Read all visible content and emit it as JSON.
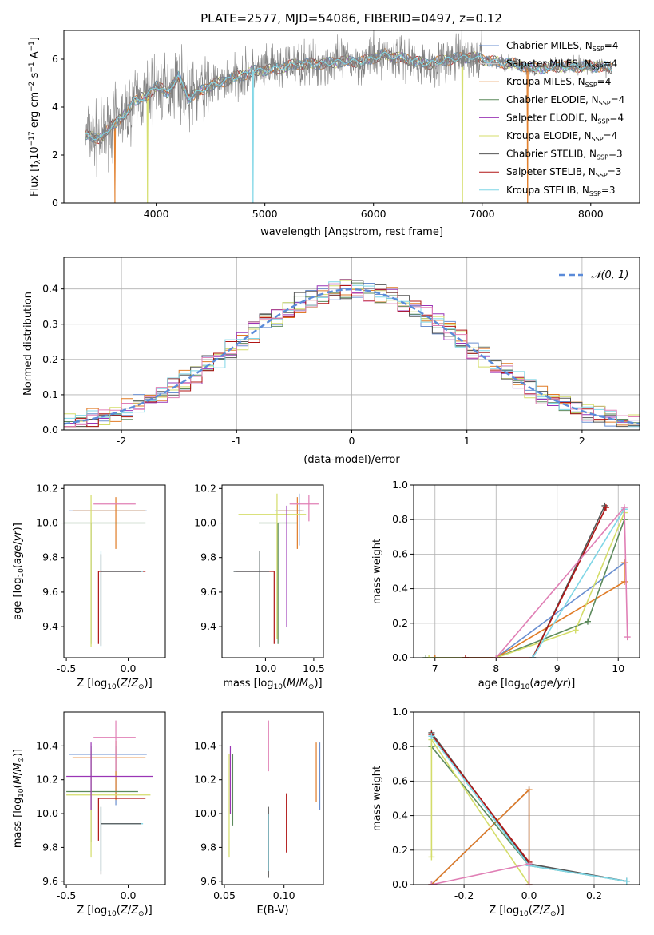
{
  "figure_title": "PLATE=2577, MJD=54086, FIBERID=0497, z=0.12",
  "colors": {
    "Chabrier MILES": "#6a8fd0",
    "Salpeter MILES": "#cccccc",
    "Kroupa MILES": "#e07b25",
    "Chabrier ELODIE": "#5c8a5c",
    "Salpeter ELODIE": "#9a35b5",
    "Kroupa ELODIE": "#d4dd6a",
    "Chabrier STELIB": "#555555",
    "Salpeter STELIB": "#b01515",
    "Kroupa STELIB": "#7fd6e6",
    "normal_fit": "#5b8bd9",
    "pink": "#e07fb5"
  },
  "chart_data": [
    {
      "type": "line",
      "panel": "spectrum",
      "title": "PLATE=2577, MJD=54086, FIBERID=0497, z=0.12",
      "xlabel": "wavelength [Angstrom, rest frame]",
      "ylabel": "Flux [f_λ10^-17 erg cm^-2 s^-1 A^-1]",
      "xlim": [
        3150,
        8450
      ],
      "ylim": [
        0,
        7.2
      ],
      "xticks": [
        4000,
        5000,
        6000,
        7000,
        8000
      ],
      "yticks": [
        0,
        2,
        4,
        6
      ],
      "legend_position": "top-right",
      "legend": [
        {
          "name": "Chabrier MILES",
          "nssp": "4"
        },
        {
          "name": "Salpeter MILES",
          "nssp": "4"
        },
        {
          "name": "Kroupa MILES",
          "nssp": "4"
        },
        {
          "name": "Chabrier ELODIE",
          "nssp": "4"
        },
        {
          "name": "Salpeter ELODIE",
          "nssp": "4"
        },
        {
          "name": "Kroupa ELODIE",
          "nssp": "4"
        },
        {
          "name": "Chabrier STELIB",
          "nssp": "3"
        },
        {
          "name": "Salpeter STELIB",
          "nssp": "3"
        },
        {
          "name": "Kroupa STELIB",
          "nssp": "3"
        }
      ],
      "continuum": {
        "x": [
          3350,
          3500,
          3600,
          3700,
          3800,
          3900,
          4000,
          4100,
          4200,
          4300,
          4500,
          4700,
          4900,
          5100,
          5300,
          5500,
          5700,
          5900,
          6100,
          6300,
          6500,
          6700,
          6900,
          7100,
          7300,
          7500,
          7700,
          7900,
          8100,
          8200
        ],
        "y": [
          2.8,
          2.7,
          3.3,
          3.6,
          4.3,
          4.4,
          4.9,
          4.6,
          5.3,
          4.4,
          4.9,
          5.2,
          5.5,
          5.6,
          5.8,
          5.8,
          5.9,
          5.9,
          6.2,
          6.0,
          5.8,
          6.0,
          6.1,
          5.9,
          5.8,
          5.6,
          5.7,
          5.7,
          5.7,
          5.6
        ]
      },
      "data_noise_sigma": 0.5,
      "sky_dips": [
        {
          "x": 3620,
          "series": "Kroupa MILES"
        },
        {
          "x": 3920,
          "series": "Kroupa ELODIE"
        },
        {
          "x": 4890,
          "series": "Kroupa STELIB"
        },
        {
          "x": 6820,
          "series": "Kroupa ELODIE"
        },
        {
          "x": 7420,
          "series": "Kroupa MILES"
        }
      ]
    },
    {
      "type": "bar",
      "panel": "residual_histogram",
      "xlabel": "(data-model)/error",
      "ylabel": "Normed distribution",
      "xlim": [
        -2.5,
        2.5
      ],
      "ylim": [
        0,
        0.49
      ],
      "xticks": [
        -2,
        -1,
        0,
        1,
        2
      ],
      "yticks": [
        0.0,
        0.1,
        0.2,
        0.3,
        0.4
      ],
      "grid": true,
      "legend_position": "top-right",
      "fit_label": "𝒩(0, 1)",
      "bin_edges": [
        -2.5,
        -2.4,
        -2.3,
        -2.2,
        -2.1,
        -2.0,
        -1.9,
        -1.8,
        -1.7,
        -1.6,
        -1.5,
        -1.4,
        -1.3,
        -1.2,
        -1.1,
        -1.0,
        -0.9,
        -0.8,
        -0.7,
        -0.6,
        -0.5,
        -0.4,
        -0.3,
        -0.2,
        -0.1,
        0.0,
        0.1,
        0.2,
        0.3,
        0.4,
        0.5,
        0.6,
        0.7,
        0.8,
        0.9,
        1.0,
        1.1,
        1.2,
        1.3,
        1.4,
        1.5,
        1.6,
        1.7,
        1.8,
        1.9,
        2.0,
        2.1,
        2.2,
        2.3,
        2.4,
        2.5
      ],
      "approx_density": "standard normal with per-bin scatter of about ±0.03"
    },
    {
      "type": "scatter",
      "panel": "age_vs_Z",
      "xlabel": "Z [log10(Z/Z⊙)]",
      "ylabel": "age [log10(age/yr)]",
      "xlim": [
        -0.52,
        0.3
      ],
      "ylim": [
        9.22,
        10.22
      ],
      "xticks": [
        -0.5,
        0.0
      ],
      "yticks": [
        9.4,
        9.6,
        9.8,
        10.0,
        10.2
      ],
      "series": [
        {
          "name": "Chabrier MILES",
          "x": -0.1,
          "y": 10.07,
          "x_err": [
            0.38,
            0.25
          ],
          "y_err": [
            0,
            0
          ]
        },
        {
          "name": "Kroupa MILES",
          "x": -0.1,
          "y": 10.07,
          "x_err": [
            0.35,
            0.24
          ],
          "y_err": [
            0.22,
            0.08
          ]
        },
        {
          "name": "Chabrier ELODIE",
          "x": -0.3,
          "y": 10.0,
          "x_err": [
            0.22,
            0.44
          ],
          "y_err": [
            0.7,
            0
          ]
        },
        {
          "name": "Kroupa ELODIE",
          "x": -0.3,
          "y": 10.0,
          "x_err": [
            0,
            0
          ],
          "y_err": [
            0.72,
            0.16
          ]
        },
        {
          "name": "Salpeter STELIB",
          "x": -0.24,
          "y": 9.72,
          "x_err": [
            0,
            0.38
          ],
          "y_err": [
            0.42,
            0
          ]
        },
        {
          "name": "Kroupa STELIB",
          "x": -0.22,
          "y": 9.72,
          "x_err": [
            0,
            0.34
          ],
          "y_err": [
            0.44,
            0.12
          ]
        },
        {
          "name": "Chabrier STELIB",
          "x": -0.22,
          "y": 9.72,
          "x_err": [
            0,
            0.32
          ],
          "y_err": [
            0.43,
            0.1
          ]
        },
        {
          "name": "Pink",
          "x": -0.1,
          "y": 10.11,
          "x_err": [
            0.18,
            0.16
          ],
          "y_err": [
            0,
            0
          ]
        },
        {
          "name": "Salpeter ELODIE",
          "x": -0.3,
          "y": 10.08,
          "x_err": [
            0,
            0
          ],
          "y_err": [
            0,
            0
          ]
        }
      ]
    },
    {
      "type": "scatter",
      "panel": "age_vs_mass",
      "xlabel": "mass [log10(M/M⊙)]",
      "ylabel": "",
      "xlim": [
        9.55,
        10.6
      ],
      "ylim": [
        9.22,
        10.22
      ],
      "xticks": [
        10.0,
        10.5
      ],
      "yticks": [
        9.4,
        9.6,
        9.8,
        10.0,
        10.2
      ],
      "series": [
        {
          "name": "Chabrier MILES",
          "x": 10.35,
          "y": 10.07,
          "x_err": [
            0.25,
            0.05
          ],
          "y_err": [
            0.2,
            0.1
          ]
        },
        {
          "name": "Kroupa MILES",
          "x": 10.33,
          "y": 10.07,
          "x_err": [
            0.2,
            0.05
          ],
          "y_err": [
            0.22,
            0.08
          ]
        },
        {
          "name": "Chabrier ELODIE",
          "x": 10.13,
          "y": 10.0,
          "x_err": [
            0.2,
            0.2
          ],
          "y_err": [
            0.7,
            0
          ]
        },
        {
          "name": "Kroupa ELODIE",
          "x": 10.12,
          "y": 10.05,
          "x_err": [
            0.4,
            0.3
          ],
          "y_err": [
            0.72,
            0.12
          ]
        },
        {
          "name": "Salpeter ELODIE",
          "x": 10.22,
          "y": 10.1,
          "x_err": [
            0,
            0
          ],
          "y_err": [
            0.7,
            0
          ]
        },
        {
          "name": "Salpeter STELIB",
          "x": 10.09,
          "y": 9.72,
          "x_err": [
            0.4,
            0
          ],
          "y_err": [
            0.42,
            0
          ]
        },
        {
          "name": "Kroupa STELIB",
          "x": 9.94,
          "y": 9.72,
          "x_err": [
            0.27,
            0.1
          ],
          "y_err": [
            0.44,
            0.12
          ]
        },
        {
          "name": "Chabrier STELIB",
          "x": 9.94,
          "y": 9.72,
          "x_err": [
            0.27,
            0.1
          ],
          "y_err": [
            0.44,
            0.12
          ]
        },
        {
          "name": "Pink",
          "x": 10.45,
          "y": 10.11,
          "x_err": [
            0.2,
            0.1
          ],
          "y_err": [
            0.1,
            0.05
          ]
        }
      ]
    },
    {
      "type": "line",
      "panel": "mass_weight_vs_age",
      "xlabel": "age [log10(age/yr)]",
      "ylabel": "mass weight",
      "xlim": [
        6.65,
        10.35
      ],
      "ylim": [
        0,
        1.0
      ],
      "xticks": [
        7,
        8,
        9,
        10
      ],
      "yticks": [
        0.0,
        0.2,
        0.4,
        0.6,
        0.8,
        1.0
      ],
      "grid": true,
      "series": [
        {
          "name": "Chabrier MILES",
          "x": [
            7.0,
            8.0,
            10.1
          ],
          "y": [
            0.0,
            0.0,
            0.55
          ]
        },
        {
          "name": "Kroupa MILES",
          "x": [
            7.0,
            8.0,
            10.1,
            10.1
          ],
          "y": [
            0.0,
            0.0,
            0.44,
            0.55
          ]
        },
        {
          "name": "Chabrier ELODIE",
          "x": [
            6.85,
            8.0,
            9.5,
            10.1
          ],
          "y": [
            0.0,
            0.0,
            0.21,
            0.8
          ]
        },
        {
          "name": "Kroupa ELODIE",
          "x": [
            6.9,
            8.0,
            9.3,
            10.1
          ],
          "y": [
            0.0,
            0.0,
            0.16,
            0.84
          ]
        },
        {
          "name": "Chabrier STELIB",
          "x": [
            8.6,
            9.78
          ],
          "y": [
            0.0,
            0.88
          ]
        },
        {
          "name": "Salpeter STELIB",
          "x": [
            7.5,
            8.6,
            9.8
          ],
          "y": [
            0.0,
            0.0,
            0.87
          ]
        },
        {
          "name": "Kroupa STELIB",
          "x": [
            8.6,
            10.1
          ],
          "y": [
            0.0,
            0.86
          ]
        },
        {
          "name": "Pink",
          "x": [
            8.0,
            10.1,
            10.15
          ],
          "y": [
            0.0,
            0.87,
            0.12
          ]
        }
      ]
    },
    {
      "type": "scatter",
      "panel": "mass_vs_Z",
      "xlabel": "Z [log10(Z/Z⊙)]",
      "ylabel": "mass [log10(M/M⊙)]",
      "xlim": [
        -0.52,
        0.3
      ],
      "ylim": [
        9.58,
        10.6
      ],
      "xticks": [
        -0.5,
        0.0
      ],
      "yticks": [
        9.6,
        9.8,
        10.0,
        10.2,
        10.4
      ],
      "series": [
        {
          "name": "Chabrier MILES",
          "x": -0.1,
          "y": 10.35,
          "x_err": [
            0.38,
            0.25
          ],
          "y_err": [
            0.3,
            0.05
          ]
        },
        {
          "name": "Kroupa MILES",
          "x": -0.1,
          "y": 10.33,
          "x_err": [
            0.35,
            0.24
          ],
          "y_err": [
            0.25,
            0.1
          ]
        },
        {
          "name": "Chabrier ELODIE",
          "x": -0.3,
          "y": 10.13,
          "x_err": [
            0.2,
            0.38
          ],
          "y_err": [
            0.3,
            0.27
          ]
        },
        {
          "name": "Kroupa ELODIE",
          "x": -0.3,
          "y": 10.11,
          "x_err": [
            0.2,
            0.48
          ],
          "y_err": [
            0.37,
            0.26
          ]
        },
        {
          "name": "Salpeter ELODIE",
          "x": -0.3,
          "y": 10.22,
          "x_err": [
            0.2,
            0.5
          ],
          "y_err": [
            0.2,
            0.2
          ]
        },
        {
          "name": "Salpeter STELIB",
          "x": -0.24,
          "y": 10.09,
          "x_err": [
            0,
            0.38
          ],
          "y_err": [
            0.25,
            0
          ]
        },
        {
          "name": "Kroupa STELIB",
          "x": -0.22,
          "y": 9.94,
          "x_err": [
            0,
            0.34
          ],
          "y_err": [
            0.28,
            0.1
          ]
        },
        {
          "name": "Chabrier STELIB",
          "x": -0.22,
          "y": 9.94,
          "x_err": [
            0,
            0.32
          ],
          "y_err": [
            0.3,
            0.1
          ]
        },
        {
          "name": "Pink",
          "x": -0.1,
          "y": 10.45,
          "x_err": [
            0.18,
            0.16
          ],
          "y_err": [
            0.2,
            0.1
          ]
        }
      ]
    },
    {
      "type": "scatter",
      "panel": "mass_vs_EBV",
      "xlabel": "E(B-V)",
      "ylabel": "",
      "xlim": [
        0.048,
        0.133
      ],
      "ylim": [
        9.58,
        10.6
      ],
      "xticks": [
        0.05,
        0.1
      ],
      "yticks": [
        9.6,
        9.8,
        10.0,
        10.2,
        10.4
      ],
      "series": [
        {
          "name": "Chabrier MILES",
          "x": 0.13,
          "y": 10.22,
          "y_err": [
            0.2,
            0.2
          ]
        },
        {
          "name": "Kroupa MILES",
          "x": 0.127,
          "y": 10.25,
          "y_err": [
            0.18,
            0.17
          ]
        },
        {
          "name": "Salpeter STELIB",
          "x": 0.102,
          "y": 9.95,
          "y_err": [
            0.18,
            0.17
          ]
        },
        {
          "name": "Pink",
          "x": 0.087,
          "y": 10.4,
          "y_err": [
            0.15,
            0.15
          ]
        },
        {
          "name": "Chabrier STELIB",
          "x": 0.087,
          "y": 9.8,
          "y_err": [
            0.18,
            0.24
          ]
        },
        {
          "name": "Kroupa STELIB",
          "x": 0.0868,
          "y": 9.8,
          "y_err": [
            0.14,
            0.2
          ]
        },
        {
          "name": "Chabrier ELODIE",
          "x": 0.057,
          "y": 10.15,
          "y_err": [
            0.22,
            0.2
          ]
        },
        {
          "name": "Kroupa ELODIE",
          "x": 0.054,
          "y": 10.05,
          "y_err": [
            0.31,
            0.3
          ]
        },
        {
          "name": "Salpeter ELODIE",
          "x": 0.055,
          "y": 10.2,
          "y_err": [
            0.2,
            0.2
          ]
        }
      ]
    },
    {
      "type": "line",
      "panel": "mass_weight_vs_Z",
      "xlabel": "Z [log10(Z/Z⊙)]",
      "ylabel": "mass weight",
      "xlim": [
        -0.355,
        0.34
      ],
      "ylim": [
        0,
        1.0
      ],
      "xticks": [
        -0.2,
        0.0,
        0.2
      ],
      "yticks": [
        0.0,
        0.2,
        0.4,
        0.6,
        0.8,
        1.0
      ],
      "grid": true,
      "series": [
        {
          "name": "Chabrier MILES",
          "x": [
            -0.3,
            0.0,
            0.0
          ],
          "y": [
            0.0,
            0.55,
            0.0
          ]
        },
        {
          "name": "Kroupa MILES",
          "x": [
            -0.3,
            0.0,
            0.0
          ],
          "y": [
            0.0,
            0.55,
            0.0
          ]
        },
        {
          "name": "Chabrier ELODIE",
          "x": [
            -0.3,
            0.0,
            0.3
          ],
          "y": [
            0.8,
            0.11,
            0.02
          ]
        },
        {
          "name": "Kroupa ELODIE",
          "x": [
            -0.3,
            -0.3,
            0.0
          ],
          "y": [
            0.16,
            0.84,
            0.0
          ]
        },
        {
          "name": "Chabrier STELIB",
          "x": [
            -0.3,
            0.0,
            0.3
          ],
          "y": [
            0.88,
            0.12,
            0.02
          ]
        },
        {
          "name": "Salpeter STELIB",
          "x": [
            -0.3,
            0.0
          ],
          "y": [
            0.87,
            0.13
          ]
        },
        {
          "name": "Kroupa STELIB",
          "x": [
            -0.3,
            0.0,
            0.3
          ],
          "y": [
            0.86,
            0.11,
            0.02
          ]
        },
        {
          "name": "Pink",
          "x": [
            -0.3,
            0.0,
            0.0
          ],
          "y": [
            0.0,
            0.12,
            0.0
          ]
        }
      ]
    }
  ]
}
